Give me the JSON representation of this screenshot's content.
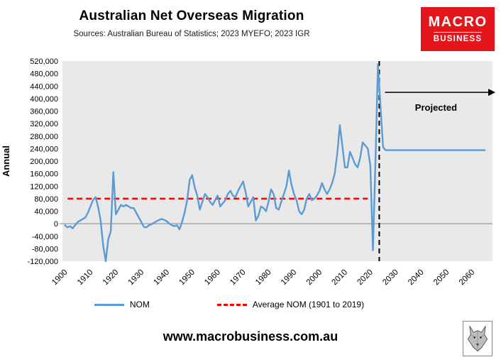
{
  "header": {
    "title": "Australian Net Overseas Migration",
    "subtitle": "Sources: Australian Bureau of Statistics; 2023 MYEFO; 2023 IGR"
  },
  "logo": {
    "line1": "MACRO",
    "line2": "BUSINESS",
    "color": "#e4151b"
  },
  "icons": {
    "wolf": "wolf-icon"
  },
  "chart_data": {
    "type": "line",
    "title": "Australian Net Overseas Migration",
    "xlabel": "",
    "ylabel": "Annual",
    "ylim": [
      -120000,
      520000
    ],
    "ytick_step": 40000,
    "xlim": [
      1899,
      2068
    ],
    "xticks": [
      1900,
      1910,
      1920,
      1930,
      1940,
      1950,
      1960,
      1970,
      1980,
      1990,
      2000,
      2010,
      2020,
      2030,
      2040,
      2050,
      2060
    ],
    "plot_bg": "#e9e9e9",
    "zero_line_color": "#9a9a9a",
    "grid": false,
    "legend_position": "bottom",
    "series": [
      {
        "name": "NOM",
        "color": "#5b9bd5",
        "style": "solid",
        "x_start": 1900,
        "x_step": 1,
        "values": [
          -5000,
          -12000,
          -8000,
          -15000,
          -5000,
          5000,
          10000,
          15000,
          20000,
          35000,
          55000,
          75000,
          85000,
          55000,
          10000,
          -70000,
          -120000,
          -50000,
          -25000,
          165000,
          30000,
          45000,
          60000,
          55000,
          60000,
          55000,
          50000,
          50000,
          35000,
          20000,
          5000,
          -10000,
          -12000,
          -5000,
          -2000,
          3000,
          8000,
          12000,
          15000,
          12000,
          8000,
          0,
          -5000,
          -8000,
          -5000,
          -18000,
          5000,
          35000,
          75000,
          140000,
          155000,
          115000,
          90000,
          45000,
          70000,
          95000,
          85000,
          70000,
          60000,
          75000,
          90000,
          55000,
          65000,
          75000,
          95000,
          105000,
          90000,
          85000,
          105000,
          120000,
          135000,
          100000,
          55000,
          70000,
          85000,
          10000,
          25000,
          55000,
          50000,
          40000,
          70000,
          110000,
          95000,
          50000,
          45000,
          70000,
          95000,
          120000,
          170000,
          125000,
          95000,
          75000,
          40000,
          30000,
          45000,
          80000,
          95000,
          75000,
          80000,
          90000,
          105000,
          130000,
          110000,
          95000,
          110000,
          130000,
          160000,
          225000,
          315000,
          250000,
          180000,
          180000,
          230000,
          210000,
          190000,
          180000,
          210000,
          260000,
          250000,
          240000,
          185000,
          -85000,
          200000,
          510000,
          375000,
          245000,
          235000,
          235000,
          235000,
          235000,
          235000,
          235000,
          235000,
          235000,
          235000,
          235000,
          235000,
          235000,
          235000,
          235000,
          235000,
          235000,
          235000,
          235000,
          235000,
          235000,
          235000,
          235000,
          235000,
          235000,
          235000,
          235000,
          235000,
          235000,
          235000,
          235000,
          235000,
          235000,
          235000,
          235000,
          235000,
          235000,
          235000,
          235000,
          235000,
          235000
        ]
      },
      {
        "name": "Average NOM (1901 to 2019)",
        "color": "#ff0000",
        "style": "dashed",
        "x": [
          1901,
          2019
        ],
        "values": [
          80000,
          80000
        ]
      }
    ],
    "annotations": {
      "projection_divider_year": 2023.5,
      "projected_label": "Projected",
      "arrow_y": 420000
    }
  },
  "legend": [
    {
      "label": "NOM",
      "color": "#5b9bd5",
      "style": "solid"
    },
    {
      "label": "Average NOM (1901 to 2019)",
      "color": "#ff0000",
      "style": "dashed"
    }
  ],
  "footer": {
    "url": "www.macrobusiness.com.au"
  }
}
